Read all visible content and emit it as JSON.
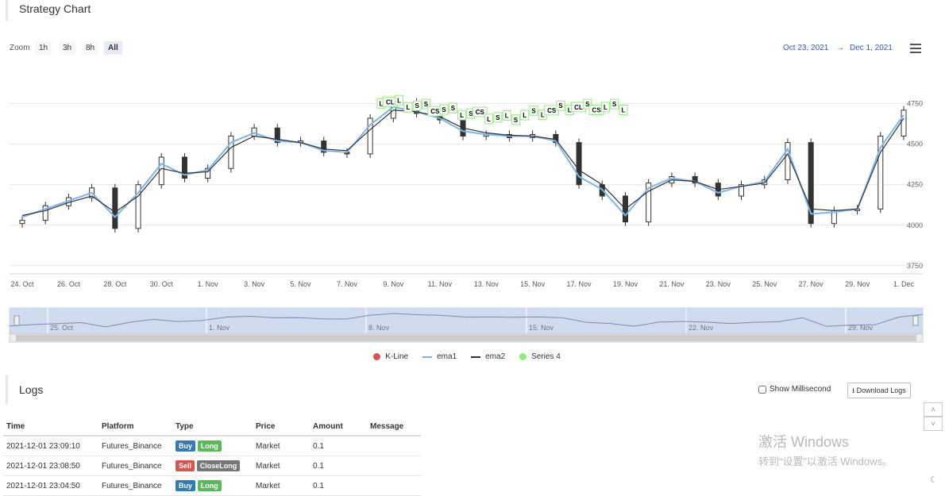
{
  "chart_panel": {
    "title": "Strategy Chart"
  },
  "zoom": {
    "label": "Zoom",
    "buttons": [
      "1h",
      "3h",
      "8h",
      "All"
    ],
    "active": "All"
  },
  "range": {
    "from": "Oct 23, 2021",
    "arrow": "→",
    "to": "Dec 1, 2021"
  },
  "chart_data": {
    "type": "line",
    "title": "",
    "xlabel": "",
    "ylabel": "",
    "ylim": [
      3700,
      4900
    ],
    "y_ticks": [
      3750,
      4000,
      4250,
      4500,
      4750
    ],
    "x_tick_labels": [
      "24. Oct",
      "26. Oct",
      "28. Oct",
      "30. Oct",
      "1. Nov",
      "3. Nov",
      "5. Nov",
      "7. Nov",
      "9. Nov",
      "11. Nov",
      "13. Nov",
      "15. Nov",
      "17. Nov",
      "19. Nov",
      "21. Nov",
      "23. Nov",
      "25. Nov",
      "27. Nov",
      "29. Nov",
      "1. Dec"
    ],
    "x": [
      "24. Oct",
      "25. Oct",
      "26. Oct",
      "27. Oct",
      "28. Oct",
      "29. Oct",
      "30. Oct",
      "31. Oct",
      "1. Nov",
      "2. Nov",
      "3. Nov",
      "4. Nov",
      "5. Nov",
      "6. Nov",
      "7. Nov",
      "8. Nov",
      "9. Nov",
      "10. Nov",
      "11. Nov",
      "12. Nov",
      "13. Nov",
      "14. Nov",
      "15. Nov",
      "16. Nov",
      "17. Nov",
      "18. Nov",
      "19. Nov",
      "20. Nov",
      "21. Nov",
      "22. Nov",
      "23. Nov",
      "24. Nov",
      "25. Nov",
      "26. Nov",
      "27. Nov",
      "28. Nov",
      "29. Nov",
      "30. Nov",
      "1. Dec"
    ],
    "series": [
      {
        "name": "K-Line",
        "color": "#333333",
        "values": [
          4030,
          4120,
          4170,
          4230,
          3980,
          4250,
          4420,
          4290,
          4350,
          4550,
          4600,
          4510,
          4520,
          4450,
          4440,
          4660,
          4760,
          4690,
          4650,
          4550,
          4560,
          4540,
          4560,
          4510,
          4250,
          4180,
          4020,
          4260,
          4300,
          4260,
          4180,
          4250,
          4280,
          4510,
          4010,
          4090,
          4100,
          4550,
          4710
        ]
      },
      {
        "name": "ema1",
        "color": "#7cb5ec",
        "values": [
          4050,
          4100,
          4150,
          4200,
          4050,
          4200,
          4380,
          4310,
          4340,
          4510,
          4570,
          4520,
          4510,
          4460,
          4450,
          4620,
          4730,
          4700,
          4660,
          4580,
          4560,
          4550,
          4550,
          4520,
          4300,
          4220,
          4060,
          4230,
          4290,
          4270,
          4200,
          4240,
          4270,
          4470,
          4070,
          4080,
          4100,
          4480,
          4680
        ]
      },
      {
        "name": "ema2",
        "color": "#333333",
        "values": [
          4060,
          4090,
          4140,
          4180,
          4080,
          4180,
          4350,
          4320,
          4330,
          4480,
          4550,
          4530,
          4510,
          4470,
          4460,
          4590,
          4710,
          4700,
          4670,
          4600,
          4570,
          4555,
          4550,
          4530,
          4340,
          4250,
          4100,
          4210,
          4280,
          4270,
          4220,
          4240,
          4260,
          4440,
          4100,
          4090,
          4100,
          4450,
          4660
        ]
      }
    ],
    "signals": {
      "name": "Series 4",
      "color": "#90ed7d",
      "labels": [
        "L",
        "CL",
        "L",
        "L",
        "S",
        "S",
        "CS",
        "S",
        "S",
        "L",
        "S",
        "CS",
        "L",
        "S",
        "L",
        "S",
        "L",
        "S",
        "L",
        "CS",
        "S",
        "L",
        "CL",
        "S",
        "CS",
        "L",
        "S",
        "L"
      ]
    }
  },
  "navigator": {
    "labels": [
      "25. Oct",
      "1. Nov",
      "8. Nov",
      "15. Nov",
      "22. Nov",
      "29. Nov"
    ]
  },
  "legend": [
    {
      "name": "K-Line",
      "color": "#d9534f",
      "shape": "dot"
    },
    {
      "name": "ema1",
      "color": "#7cb5ec",
      "shape": "line"
    },
    {
      "name": "ema2",
      "color": "#333333",
      "shape": "line"
    },
    {
      "name": "Series 4",
      "color": "#90ed7d",
      "shape": "dot"
    }
  ],
  "logs": {
    "title": "Logs",
    "show_ms_label": "Show Millisecond",
    "download_label": "Download Logs",
    "columns": [
      "Time",
      "Platform",
      "Type",
      "Price",
      "Amount",
      "Message"
    ],
    "rows": [
      {
        "time": "2021-12-01 23:09:10",
        "platform": "Futures_Binance",
        "type": "Buy",
        "type2": "Long",
        "price": "Market",
        "amount": "0.1",
        "message": ""
      },
      {
        "time": "2021-12-01 23:08:50",
        "platform": "Futures_Binance",
        "type": "Sell",
        "type2": "CloseLong",
        "price": "Market",
        "amount": "0.1",
        "message": ""
      },
      {
        "time": "2021-12-01 23:04:50",
        "platform": "Futures_Binance",
        "type": "Buy",
        "type2": "Long",
        "price": "Market",
        "amount": "0.1",
        "message": ""
      }
    ]
  },
  "watermark": {
    "line1": "激活 Windows",
    "line2": "转到“设置”以激活 Windows。"
  }
}
